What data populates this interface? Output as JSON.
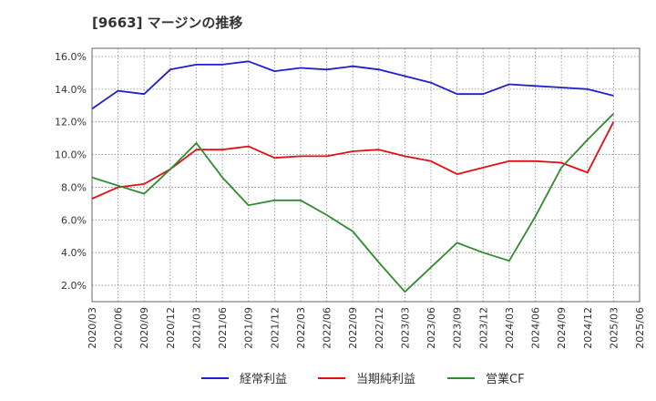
{
  "chart_data": {
    "type": "line",
    "title": "[9663]  マージンの推移",
    "xlabel": "",
    "ylabel": "",
    "categories": [
      "2020/03",
      "2020/06",
      "2020/09",
      "2020/12",
      "2021/03",
      "2021/06",
      "2021/09",
      "2021/12",
      "2022/03",
      "2022/06",
      "2022/09",
      "2022/12",
      "2023/03",
      "2023/06",
      "2023/09",
      "2023/12",
      "2024/03",
      "2024/06",
      "2024/09",
      "2024/12",
      "2025/03",
      "2025/06"
    ],
    "ylim": [
      1.0,
      16.5
    ],
    "yticks": [
      2.0,
      4.0,
      6.0,
      8.0,
      10.0,
      12.0,
      14.0,
      16.0
    ],
    "ytick_labels": [
      "2.0%",
      "4.0%",
      "6.0%",
      "8.0%",
      "10.0%",
      "12.0%",
      "14.0%",
      "16.0%"
    ],
    "grid": true,
    "legend_position": "bottom",
    "series": [
      {
        "name": "経常利益",
        "color": "#1f1fcc",
        "values": [
          12.8,
          13.9,
          13.7,
          15.2,
          15.5,
          15.5,
          15.7,
          15.1,
          15.3,
          15.2,
          15.4,
          15.2,
          14.8,
          14.4,
          13.7,
          13.7,
          14.3,
          14.2,
          14.1,
          14.0,
          13.6,
          null
        ]
      },
      {
        "name": "当期純利益",
        "color": "#e01010",
        "values": [
          7.3,
          8.0,
          8.2,
          9.1,
          10.3,
          10.3,
          10.5,
          9.8,
          9.9,
          9.9,
          10.2,
          10.3,
          9.9,
          9.6,
          8.8,
          9.2,
          9.6,
          9.6,
          9.5,
          8.9,
          12.0,
          null
        ]
      },
      {
        "name": "営業CF",
        "color": "#2e8b2e",
        "values": [
          8.6,
          8.1,
          7.6,
          9.1,
          10.7,
          8.6,
          6.9,
          7.2,
          7.2,
          6.3,
          5.3,
          3.4,
          1.6,
          3.1,
          4.6,
          4.0,
          3.5,
          6.2,
          9.2,
          10.9,
          12.5,
          null
        ]
      }
    ]
  }
}
